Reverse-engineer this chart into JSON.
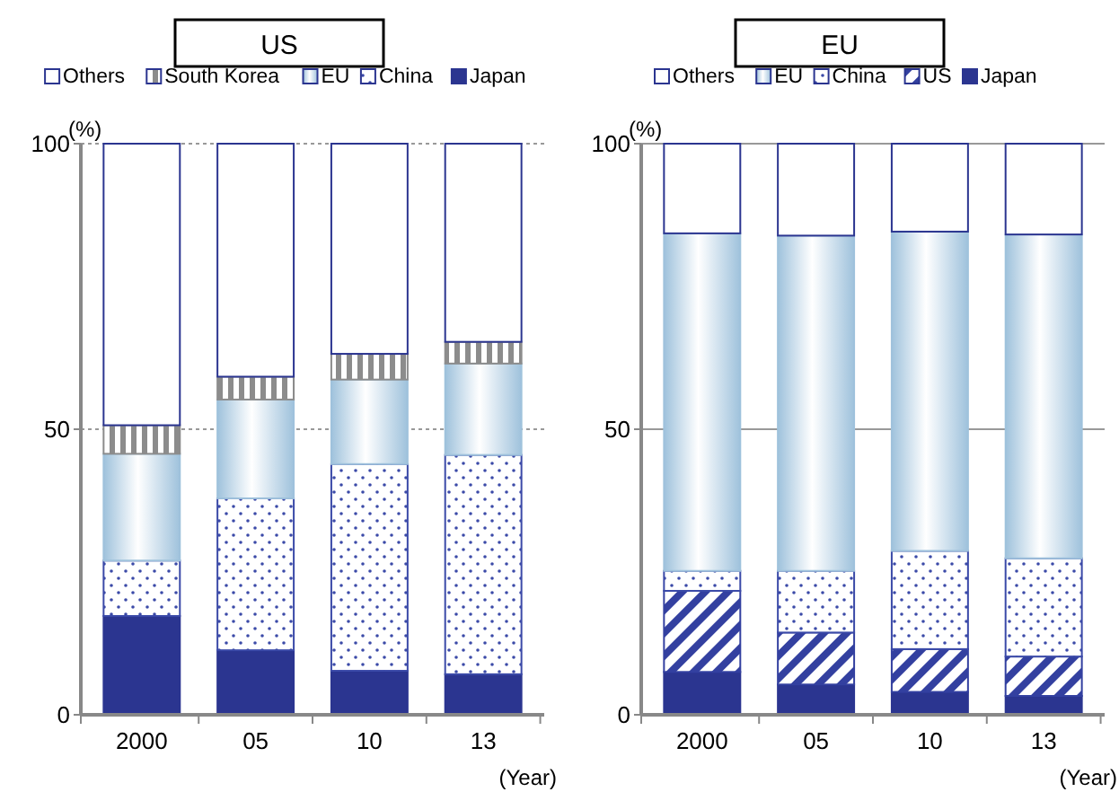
{
  "chart_data": [
    {
      "type": "bar",
      "title": "US",
      "ylabel": "(%)",
      "xlabel": "(Year)",
      "categories": [
        "2000",
        "05",
        "10",
        "13"
      ],
      "stacked": true,
      "ylim": [
        0,
        100
      ],
      "yticks": [
        0,
        50,
        100
      ],
      "grid": "y",
      "legend": "top",
      "series": [
        {
          "name": "Japan",
          "color": "#2b3590",
          "values": [
            17.3,
            11.3,
            7.7,
            7.1
          ]
        },
        {
          "name": "China",
          "color": "#3b4aa8",
          "values": [
            9.7,
            26.6,
            36.2,
            38.4
          ]
        },
        {
          "name": "EU",
          "color": "#9fc2dc",
          "values": [
            18.7,
            17.3,
            14.8,
            16.0
          ]
        },
        {
          "name": "South Korea",
          "color": "#8c8c8c",
          "values": [
            5.0,
            4.0,
            4.5,
            3.8
          ]
        },
        {
          "name": "Others",
          "color": "#ffffff",
          "values": [
            49.3,
            40.8,
            36.8,
            34.7
          ]
        }
      ]
    },
    {
      "type": "bar",
      "title": "EU",
      "ylabel": "(%)",
      "xlabel": "(Year)",
      "categories": [
        "2000",
        "05",
        "10",
        "13"
      ],
      "stacked": true,
      "ylim": [
        0,
        100
      ],
      "yticks": [
        0,
        50,
        100
      ],
      "grid": "y",
      "legend": "top",
      "series": [
        {
          "name": "Japan",
          "color": "#2b3590",
          "values": [
            7.5,
            5.3,
            4.0,
            3.3
          ]
        },
        {
          "name": "US",
          "color": "#3340a0",
          "values": [
            14.2,
            9.1,
            7.5,
            6.9
          ]
        },
        {
          "name": "China",
          "color": "#3b4aa8",
          "values": [
            3.5,
            10.8,
            17.2,
            17.2
          ]
        },
        {
          "name": "EU",
          "color": "#9fc2dc",
          "values": [
            59.1,
            58.7,
            55.9,
            56.7
          ]
        },
        {
          "name": "Others",
          "color": "#ffffff",
          "values": [
            15.7,
            16.1,
            15.4,
            15.9
          ]
        }
      ]
    }
  ]
}
